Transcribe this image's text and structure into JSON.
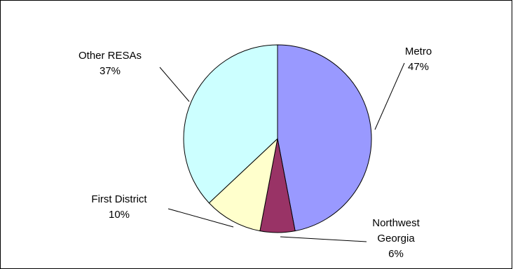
{
  "chart_data": {
    "type": "pie",
    "start_angle_deg": 0,
    "direction": "clockwise",
    "categories": [
      "Metro",
      "Northwest Georgia",
      "First District",
      "Other RESAs"
    ],
    "values": [
      47,
      6,
      10,
      37
    ],
    "value_labels": [
      "47%",
      "6%",
      "10%",
      "37%"
    ],
    "label_lines": [
      [
        "Metro"
      ],
      [
        "Northwest",
        "Georgia"
      ],
      [
        "First District"
      ],
      [
        "Other RESAs"
      ]
    ],
    "colors": [
      "#9999ff",
      "#993366",
      "#ffffcc",
      "#ccffff"
    ],
    "legend": "none"
  }
}
